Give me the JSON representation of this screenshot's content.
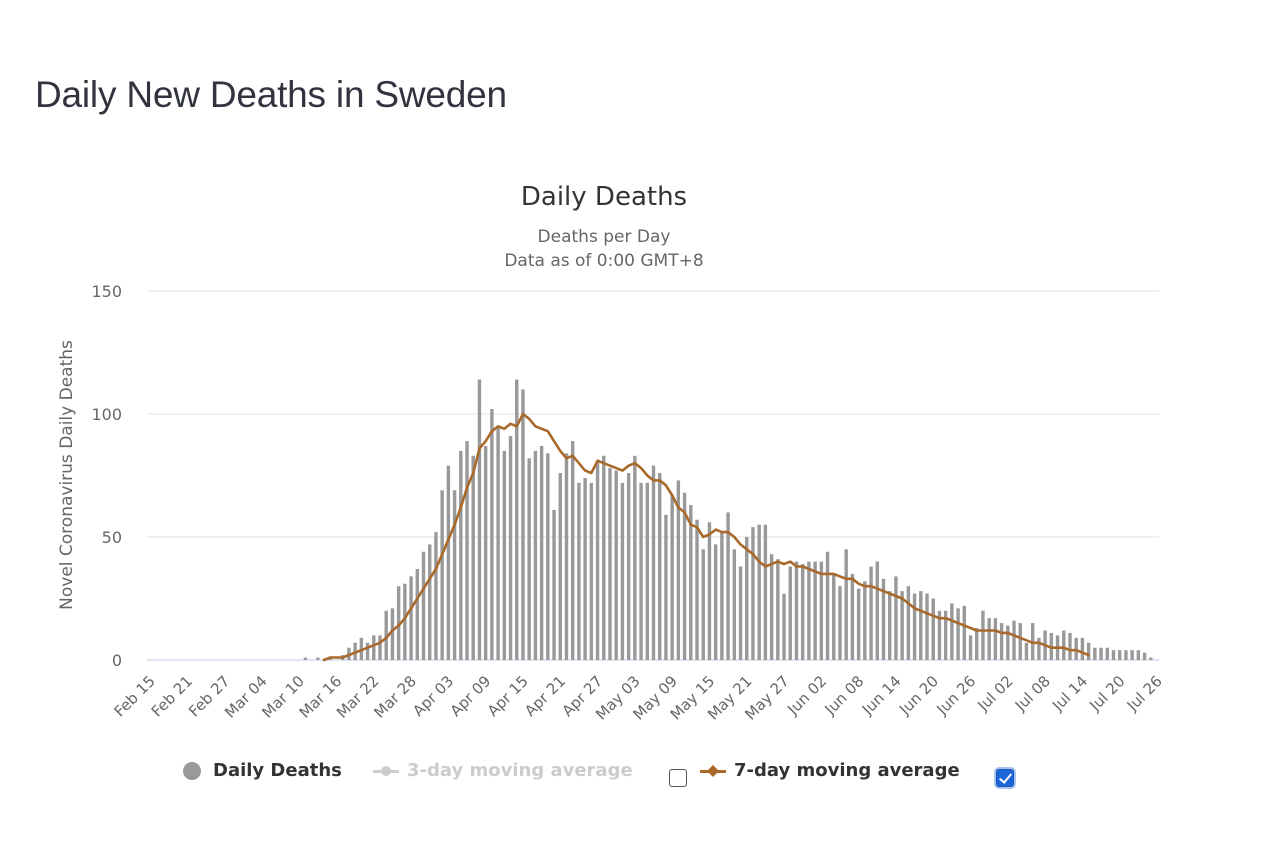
{
  "page": {
    "title": "Daily New Deaths in Sweden"
  },
  "chart_data": {
    "type": "bar",
    "title": "Daily Deaths",
    "subtitle_lines": [
      "Deaths per Day",
      "Data as of 0:00 GMT+8"
    ],
    "xlabel": "",
    "ylabel": "Novel Coronavirus Daily Deaths",
    "ylim": [
      0,
      150
    ],
    "yticks": [
      0,
      50,
      100,
      150
    ],
    "grid": true,
    "start_date": "Feb 15",
    "x_tick_labels": [
      "Feb 15",
      "Feb 21",
      "Feb 27",
      "Mar 04",
      "Mar 10",
      "Mar 16",
      "Mar 22",
      "Mar 28",
      "Apr 03",
      "Apr 09",
      "Apr 15",
      "Apr 21",
      "Apr 27",
      "May 03",
      "May 09",
      "May 15",
      "May 21",
      "May 27",
      "Jun 02",
      "Jun 08",
      "Jun 14",
      "Jun 20",
      "Jun 26",
      "Jul 02",
      "Jul 08",
      "Jul 14",
      "Jul 20",
      "Jul 26"
    ],
    "x_tick_every_days": 6,
    "legend_position": "bottom",
    "series": [
      {
        "name": "Daily Deaths",
        "type": "bar",
        "color": "#999999",
        "visible": true,
        "values": [
          0,
          0,
          0,
          0,
          0,
          0,
          0,
          0,
          0,
          0,
          0,
          0,
          0,
          0,
          0,
          0,
          0,
          0,
          0,
          0,
          0,
          0,
          0,
          0,
          0,
          1,
          0,
          1,
          0,
          1,
          0,
          2,
          5,
          7,
          9,
          7,
          10,
          10,
          20,
          21,
          30,
          31,
          34,
          37,
          44,
          47,
          52,
          69,
          79,
          69,
          85,
          89,
          83,
          114,
          87,
          102,
          95,
          85,
          91,
          114,
          110,
          82,
          85,
          87,
          84,
          61,
          76,
          84,
          89,
          72,
          74,
          72,
          81,
          83,
          78,
          77,
          72,
          76,
          83,
          72,
          72,
          79,
          76,
          59,
          67,
          73,
          68,
          63,
          57,
          45,
          56,
          47,
          52,
          60,
          45,
          38,
          50,
          54,
          55,
          55,
          43,
          41,
          27,
          38,
          40,
          39,
          40,
          40,
          40,
          44,
          35,
          30,
          45,
          35,
          29,
          32,
          38,
          40,
          33,
          28,
          34,
          28,
          30,
          27,
          28,
          27,
          25,
          20,
          20,
          23,
          21,
          22,
          10,
          13,
          20,
          17,
          17,
          15,
          14,
          16,
          15,
          7,
          15,
          9,
          12,
          11,
          10,
          12,
          11,
          9,
          9,
          7,
          5,
          5,
          5,
          4,
          4,
          4,
          4,
          4,
          3,
          1,
          0
        ]
      },
      {
        "name": "3-day moving average",
        "type": "line",
        "color": "#cccccc",
        "visible": false,
        "values": []
      },
      {
        "name": "7-day moving average",
        "type": "line",
        "color": "#a8692a",
        "visible": true,
        "start_index": 28,
        "values": [
          0,
          1,
          1,
          1,
          2,
          3,
          4,
          5,
          6,
          7,
          9,
          12,
          14,
          17,
          21,
          25,
          29,
          33,
          37,
          43,
          49,
          55,
          62,
          70,
          76,
          86,
          89,
          93,
          95,
          94,
          96,
          95,
          100,
          98,
          95,
          94,
          93,
          89,
          85,
          82,
          83,
          80,
          77,
          76,
          81,
          80,
          79,
          78,
          77,
          79,
          80,
          78,
          75,
          73,
          73,
          71,
          67,
          62,
          60,
          55,
          54,
          50,
          51,
          53,
          52,
          52,
          50,
          47,
          45,
          43,
          40,
          38,
          39,
          40,
          39,
          40,
          38,
          38,
          37,
          36,
          35,
          35,
          35,
          34,
          33,
          33,
          31,
          30,
          30,
          29,
          28,
          27,
          26,
          25,
          23,
          21,
          20,
          19,
          18,
          17,
          17,
          16,
          15,
          14,
          13,
          12,
          12,
          12,
          12,
          11,
          11,
          10,
          9,
          8,
          7,
          7,
          6,
          5,
          5,
          5,
          4,
          4,
          3,
          2
        ]
      }
    ]
  },
  "legend": {
    "items": [
      {
        "label": "Daily Deaths",
        "icon": "circle-marker-icon",
        "enabled": true
      },
      {
        "label": "3-day moving average",
        "icon": "line-circle-marker-icon",
        "enabled": false,
        "checkbox_checked": false
      },
      {
        "label": "7-day moving average",
        "icon": "line-diamond-marker-icon",
        "enabled": true,
        "checkbox_checked": true
      }
    ]
  }
}
